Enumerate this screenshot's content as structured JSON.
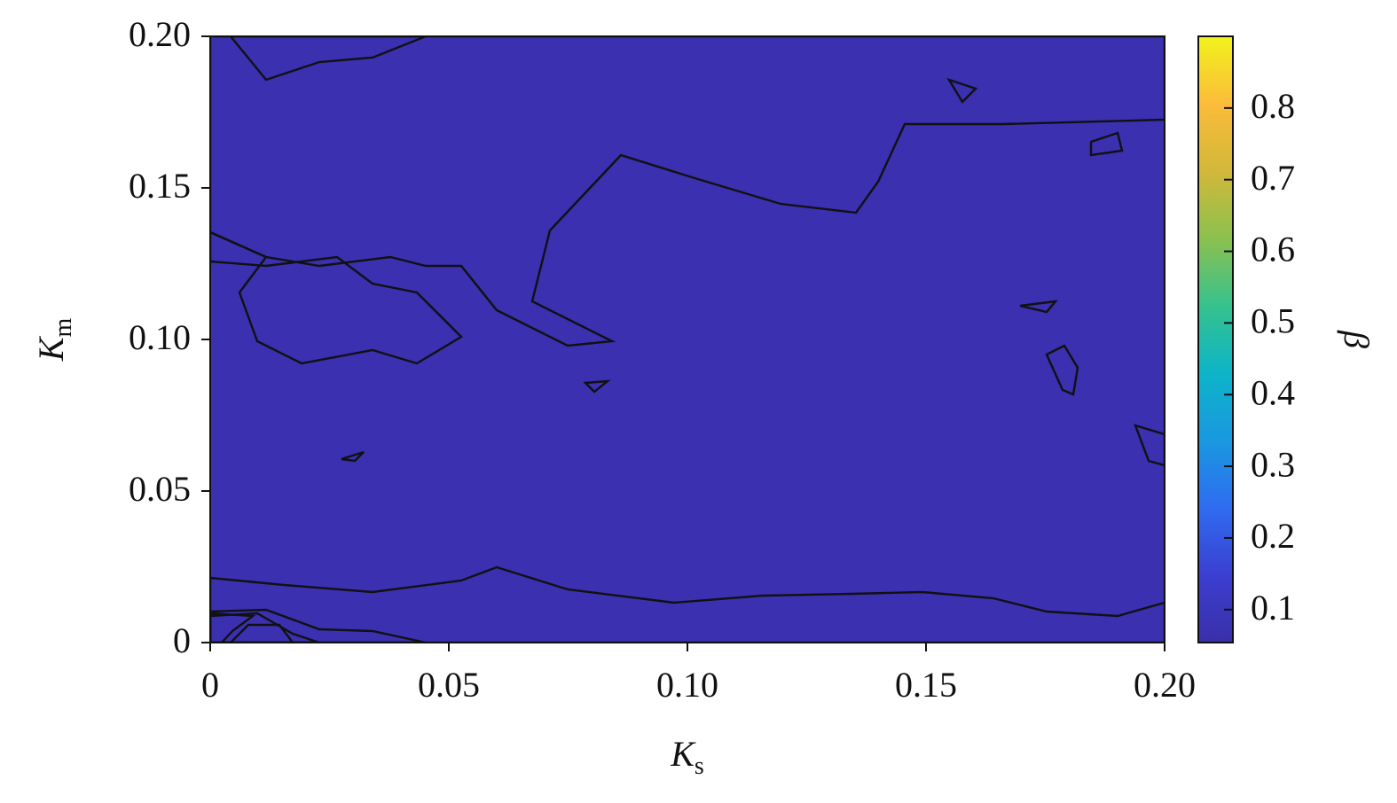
{
  "chart_data": {
    "type": "contour",
    "x_label": {
      "main": "K",
      "sub": "s"
    },
    "y_label": {
      "main": "K",
      "sub": "m"
    },
    "colorbar_label": "β",
    "xlim": [
      0,
      0.2
    ],
    "ylim": [
      0,
      0.2
    ],
    "xticks": [
      0,
      0.05,
      {
        "value": 0.1,
        "label": "0.10"
      },
      0.15,
      {
        "value": 0.2,
        "label": "0.20"
      }
    ],
    "yticks": [
      0,
      0.05,
      {
        "value": 0.1,
        "label": "0.10"
      },
      0.15,
      {
        "value": 0.2,
        "label": "0.20"
      }
    ],
    "clim": [
      0.054,
      0.9
    ],
    "cticks": [
      0.1,
      0.2,
      0.3,
      0.4,
      0.5,
      0.6,
      0.7,
      0.8
    ],
    "colormap": [
      "#3a2fa8",
      "#3b3fd0",
      "#2f6cf0",
      "#1a98e0",
      "#0db4c8",
      "#36c28e",
      "#8cc04e",
      "#d2b83a",
      "#fbbc3a",
      "#f2f21c"
    ]
  }
}
